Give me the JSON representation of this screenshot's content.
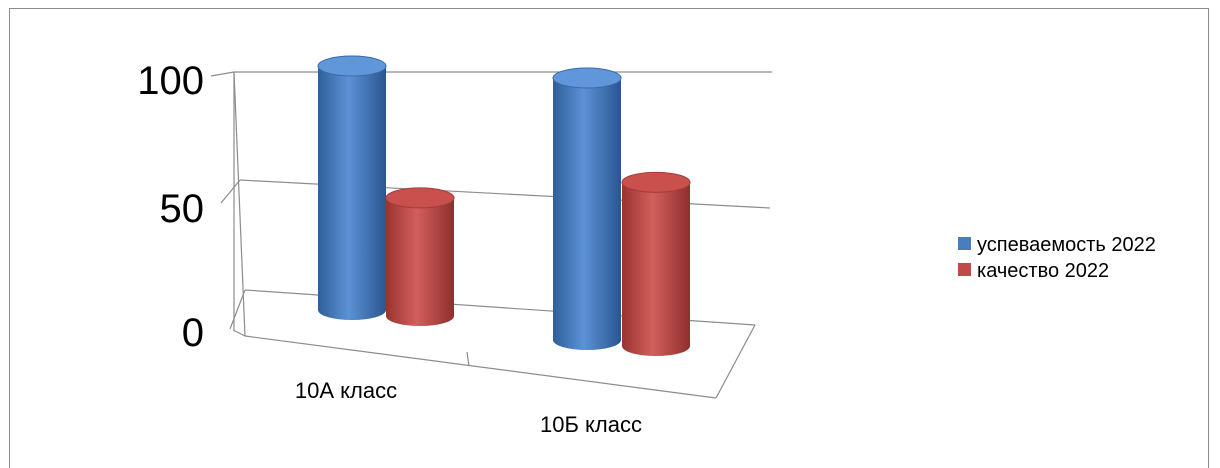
{
  "chart_data": {
    "type": "bar",
    "style": "3d-cylinder",
    "categories": [
      "10А класс",
      "10Б класс"
    ],
    "series": [
      {
        "name": "успеваемость 2022",
        "values": [
          100,
          100
        ],
        "color": "#4a7ebb"
      },
      {
        "name": "качество 2022",
        "values": [
          48,
          62
        ],
        "color": "#be4b48"
      }
    ],
    "ylim": [
      0,
      100
    ],
    "yticks": [
      "0",
      "50",
      "100"
    ],
    "grid": true,
    "legend": "right",
    "title": "",
    "xlabel": "",
    "ylabel": ""
  }
}
